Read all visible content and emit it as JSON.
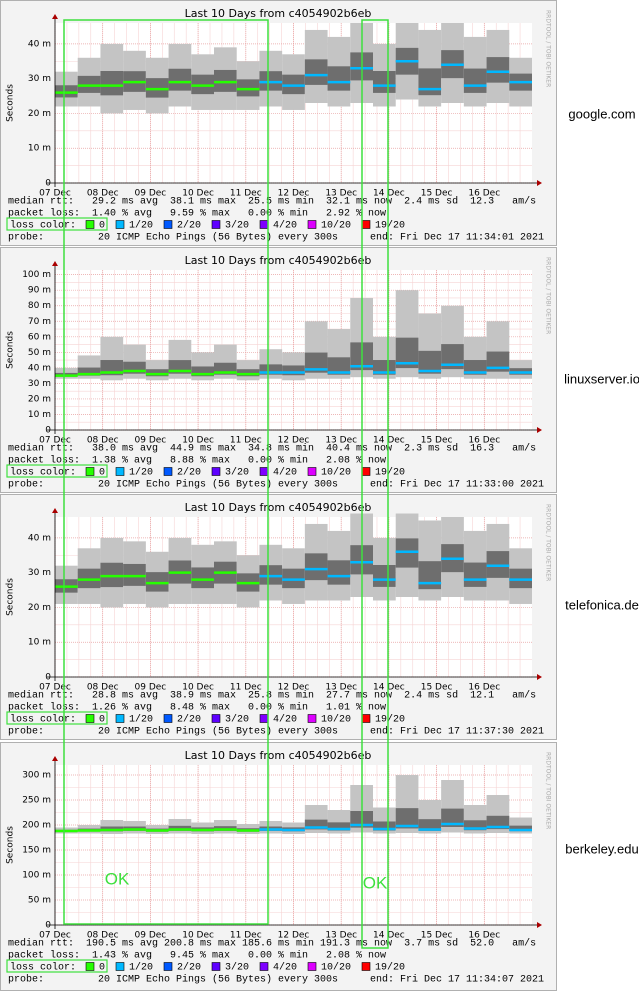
{
  "chart_data": [
    {
      "type": "smoke",
      "title": "Last 10 Days from c4054902b6eb",
      "y_label": "Seconds",
      "host": "google.com",
      "ylim": [
        0,
        46
      ],
      "yticks": [
        {
          "value": 0,
          "label": "0"
        },
        {
          "value": 10,
          "label": "10 m"
        },
        {
          "value": 20,
          "label": "20 m"
        },
        {
          "value": 30,
          "label": "30 m"
        },
        {
          "value": 40,
          "label": "40 m"
        }
      ],
      "xlim": [
        0,
        10
      ],
      "xticks": [
        {
          "value": 0,
          "label": "07 Dec"
        },
        {
          "value": 1,
          "label": "08 Dec"
        },
        {
          "value": 2,
          "label": "09 Dec"
        },
        {
          "value": 3,
          "label": "10 Dec"
        },
        {
          "value": 4,
          "label": "11 Dec"
        },
        {
          "value": 5,
          "label": "12 Dec"
        },
        {
          "value": 6,
          "label": "13 Dec"
        },
        {
          "value": 7,
          "label": "14 Dec"
        },
        {
          "value": 8,
          "label": "15 Dec"
        },
        {
          "value": 9,
          "label": "16 Dec"
        }
      ],
      "median": [
        26,
        28,
        28,
        29,
        27,
        29,
        28,
        29,
        27,
        29,
        28,
        31,
        29,
        33,
        28,
        35,
        27,
        34,
        28,
        32,
        29
      ],
      "low": [
        22,
        22,
        20,
        21,
        20,
        22,
        21,
        21,
        21,
        22,
        21,
        23,
        22,
        23,
        22,
        24,
        22,
        23,
        22,
        23,
        22
      ],
      "high": [
        32,
        36,
        40,
        38,
        36,
        40,
        37,
        39,
        35,
        38,
        37,
        44,
        42,
        46,
        40,
        46,
        44,
        46,
        42,
        44,
        36
      ],
      "loss": [
        0,
        0,
        0,
        0,
        0,
        0,
        0,
        0,
        0,
        1,
        1,
        1,
        1,
        1,
        1,
        1,
        1,
        1,
        1,
        1,
        1
      ],
      "rtt_line": "median rtt:   29.2 ms avg  38.1 ms max  25.5 ms min  32.1 ms now  2.4 ms sd  12.3   am/s",
      "loss_line": "packet loss:  1.40 % avg   9.59 % max   0.00 % min   2.92 % now",
      "probe_line": "probe:         20 ICMP Echo Pings (56 Bytes) every 300s",
      "end": "end: Fri Dec 17 11:34:01 2021"
    },
    {
      "type": "smoke",
      "title": "Last 10 Days from c4054902b6eb",
      "y_label": "Seconds",
      "host": "linuxserver.io",
      "ylim": [
        0,
        103
      ],
      "yticks": [
        {
          "value": 0,
          "label": "0"
        },
        {
          "value": 10,
          "label": "10 m"
        },
        {
          "value": 20,
          "label": "20 m"
        },
        {
          "value": 30,
          "label": "30 m"
        },
        {
          "value": 40,
          "label": "40 m"
        },
        {
          "value": 50,
          "label": "50 m"
        },
        {
          "value": 60,
          "label": "60 m"
        },
        {
          "value": 70,
          "label": "70 m"
        },
        {
          "value": 80,
          "label": "80 m"
        },
        {
          "value": 90,
          "label": "90 m"
        },
        {
          "value": 100,
          "label": "100 m"
        }
      ],
      "xlim": [
        0,
        10
      ],
      "xticks": [
        {
          "value": 0,
          "label": "07 Dec"
        },
        {
          "value": 1,
          "label": "08 Dec"
        },
        {
          "value": 2,
          "label": "09 Dec"
        },
        {
          "value": 3,
          "label": "10 Dec"
        },
        {
          "value": 4,
          "label": "11 Dec"
        },
        {
          "value": 5,
          "label": "12 Dec"
        },
        {
          "value": 6,
          "label": "13 Dec"
        },
        {
          "value": 7,
          "label": "14 Dec"
        },
        {
          "value": 8,
          "label": "15 Dec"
        },
        {
          "value": 9,
          "label": "16 Dec"
        }
      ],
      "median": [
        35,
        36,
        37,
        38,
        36,
        38,
        36,
        37,
        36,
        37,
        37,
        39,
        37,
        41,
        37,
        43,
        38,
        42,
        37,
        40,
        37
      ],
      "low": [
        33,
        33,
        32,
        33,
        32,
        33,
        32,
        33,
        32,
        33,
        32,
        33,
        33,
        34,
        33,
        34,
        33,
        34,
        33,
        33,
        33
      ],
      "high": [
        40,
        48,
        60,
        55,
        45,
        58,
        50,
        55,
        45,
        52,
        50,
        70,
        65,
        85,
        60,
        90,
        75,
        80,
        60,
        70,
        45
      ],
      "loss": [
        0,
        0,
        0,
        0,
        0,
        0,
        0,
        0,
        0,
        1,
        1,
        1,
        1,
        1,
        1,
        1,
        1,
        1,
        1,
        1,
        1
      ],
      "rtt_line": "median rtt:   38.0 ms avg  44.9 ms max  34.8 ms min  40.4 ms now  2.3 ms sd  16.3   am/s",
      "loss_line": "packet loss:  1.38 % avg   8.88 % max   0.00 % min   2.08 % now",
      "probe_line": "probe:         20 ICMP Echo Pings (56 Bytes) every 300s",
      "end": "end: Fri Dec 17 11:33:00 2021"
    },
    {
      "type": "smoke",
      "title": "Last 10 Days from c4054902b6eb",
      "y_label": "Seconds",
      "host": "telefonica.de",
      "ylim": [
        0,
        46
      ],
      "yticks": [
        {
          "value": 0,
          "label": "0"
        },
        {
          "value": 10,
          "label": "10 m"
        },
        {
          "value": 20,
          "label": "20 m"
        },
        {
          "value": 30,
          "label": "30 m"
        },
        {
          "value": 40,
          "label": "40 m"
        }
      ],
      "xlim": [
        0,
        10
      ],
      "xticks": [
        {
          "value": 0,
          "label": "07 Dec"
        },
        {
          "value": 1,
          "label": "08 Dec"
        },
        {
          "value": 2,
          "label": "09 Dec"
        },
        {
          "value": 3,
          "label": "10 Dec"
        },
        {
          "value": 4,
          "label": "11 Dec"
        },
        {
          "value": 5,
          "label": "12 Dec"
        },
        {
          "value": 6,
          "label": "13 Dec"
        },
        {
          "value": 7,
          "label": "14 Dec"
        },
        {
          "value": 8,
          "label": "15 Dec"
        },
        {
          "value": 9,
          "label": "16 Dec"
        }
      ],
      "median": [
        26,
        28,
        29,
        29,
        27,
        30,
        28,
        30,
        27,
        29,
        28,
        31,
        29,
        33,
        28,
        36,
        27,
        34,
        28,
        32,
        28
      ],
      "low": [
        21,
        21,
        20,
        21,
        20,
        21,
        21,
        21,
        20,
        22,
        21,
        22,
        22,
        23,
        22,
        23,
        22,
        23,
        22,
        22,
        21
      ],
      "high": [
        32,
        37,
        40,
        39,
        36,
        40,
        38,
        39,
        35,
        38,
        37,
        44,
        42,
        47,
        40,
        47,
        45,
        46,
        42,
        44,
        37
      ],
      "loss": [
        0,
        0,
        0,
        0,
        0,
        0,
        0,
        0,
        0,
        1,
        1,
        1,
        1,
        1,
        1,
        1,
        1,
        1,
        1,
        1,
        1
      ],
      "rtt_line": "median rtt:   28.8 ms avg  38.9 ms max  25.8 ms min  27.7 ms now  2.4 ms sd  12.1   am/s",
      "loss_line": "packet loss:  1.26 % avg   8.48 % max   0.00 % min   1.01 % now",
      "probe_line": "probe:         20 ICMP Echo Pings (56 Bytes) every 300s",
      "end": "end: Fri Dec 17 11:37:30 2021"
    },
    {
      "type": "smoke",
      "title": "Last 10 Days from c4054902b6eb",
      "y_label": "Seconds",
      "host": "berkeley.edu",
      "ylim": [
        0,
        320
      ],
      "yticks": [
        {
          "value": 0,
          "label": "0"
        },
        {
          "value": 50,
          "label": "50 m"
        },
        {
          "value": 100,
          "label": "100 m"
        },
        {
          "value": 150,
          "label": "150 m"
        },
        {
          "value": 200,
          "label": "200 m"
        },
        {
          "value": 250,
          "label": "250 m"
        },
        {
          "value": 300,
          "label": "300 m"
        }
      ],
      "xlim": [
        0,
        10
      ],
      "xticks": [
        {
          "value": 0,
          "label": "07 Dec"
        },
        {
          "value": 1,
          "label": "08 Dec"
        },
        {
          "value": 2,
          "label": "09 Dec"
        },
        {
          "value": 3,
          "label": "10 Dec"
        },
        {
          "value": 4,
          "label": "11 Dec"
        },
        {
          "value": 5,
          "label": "12 Dec"
        },
        {
          "value": 6,
          "label": "13 Dec"
        },
        {
          "value": 7,
          "label": "14 Dec"
        },
        {
          "value": 8,
          "label": "15 Dec"
        },
        {
          "value": 9,
          "label": "16 Dec"
        }
      ],
      "median": [
        188,
        189,
        190,
        191,
        189,
        191,
        190,
        191,
        189,
        191,
        190,
        195,
        192,
        200,
        192,
        198,
        191,
        202,
        193,
        196,
        190
      ],
      "low": [
        183,
        183,
        182,
        183,
        182,
        183,
        182,
        183,
        182,
        183,
        182,
        184,
        183,
        185,
        183,
        184,
        183,
        185,
        183,
        184,
        183
      ],
      "high": [
        195,
        200,
        210,
        208,
        200,
        212,
        205,
        210,
        202,
        208,
        205,
        240,
        230,
        280,
        235,
        300,
        250,
        290,
        240,
        260,
        215
      ],
      "loss": [
        0,
        0,
        0,
        0,
        0,
        0,
        0,
        0,
        0,
        1,
        1,
        1,
        1,
        1,
        1,
        1,
        1,
        1,
        1,
        1,
        1
      ],
      "rtt_line": "median rtt:  190.5 ms avg 200.8 ms max 185.6 ms min 191.3 ms now  3.7 ms sd  52.0   am/s",
      "loss_line": "packet loss:  1.43 % avg   9.45 % max   0.00 % min   2.08 % now",
      "probe_line": "probe:         20 ICMP Echo Pings (56 Bytes) every 300s",
      "end": "end: Fri Dec 17 11:34:07 2021"
    }
  ],
  "loss_legend": {
    "label": "loss color:",
    "items": [
      {
        "label": "0",
        "color": "#26ff00"
      },
      {
        "label": "1/20",
        "color": "#00b8ff"
      },
      {
        "label": "2/20",
        "color": "#0059ff"
      },
      {
        "label": "3/20",
        "color": "#5e00ff"
      },
      {
        "label": "4/20",
        "color": "#7e00ff"
      },
      {
        "label": "10/20",
        "color": "#dd00ff"
      },
      {
        "label": "19/20",
        "color": "#ff0000"
      }
    ]
  },
  "watermark": "RRDTOOL / TOBI OETIKER",
  "annotations": [
    "OK",
    "OK"
  ]
}
